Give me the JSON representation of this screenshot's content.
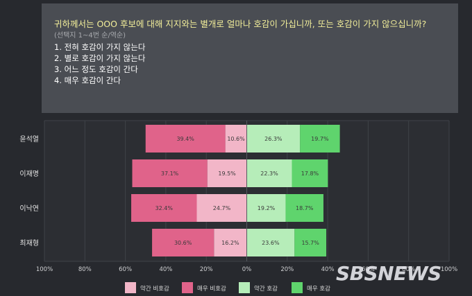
{
  "question": {
    "text": "귀하께서는 OOO 후보에 대해 지지와는 별개로 얼마나 호감이 가십니까, 또는 호감이 가지 않으십니까?",
    "note": "(선택지 1~4번 순/역순)",
    "options": [
      "1. 전혀 호감이 가지 않는다",
      "2. 별로 호감이 가지 않는다",
      "3. 어느 정도 호감이 간다",
      "4. 매우 호감이 간다"
    ]
  },
  "watermark": "SBSNEWS",
  "chart_data": {
    "type": "bar",
    "orientation": "horizontal-diverging",
    "categories": [
      "윤석열",
      "이재명",
      "이낙연",
      "최재형"
    ],
    "series": [
      {
        "name": "매우 비호감",
        "side": "negative",
        "color": "#e0638a",
        "values": [
          39.4,
          37.1,
          32.4,
          30.6
        ]
      },
      {
        "name": "약간 비호감",
        "side": "negative",
        "color": "#f2b6c8",
        "values": [
          10.6,
          19.5,
          24.7,
          16.2
        ]
      },
      {
        "name": "약간 호감",
        "side": "positive",
        "color": "#b6edb9",
        "values": [
          26.3,
          22.3,
          19.2,
          23.6
        ]
      },
      {
        "name": "매우 호감",
        "side": "positive",
        "color": "#5fd46d",
        "values": [
          19.7,
          17.8,
          18.7,
          15.7
        ]
      }
    ],
    "value_labels": [
      [
        "39.4%",
        "10.6%",
        "26.3%",
        "19.7%"
      ],
      [
        "37.1%",
        "19.5%",
        "22.3%",
        "17.8%"
      ],
      [
        "32.4%",
        "24.7%",
        "19.2%",
        "18.7%"
      ],
      [
        "30.6%",
        "16.2%",
        "23.6%",
        "15.7%"
      ]
    ],
    "xlim": [
      -100,
      100
    ],
    "x_ticks": [
      -100,
      -80,
      -60,
      -40,
      -20,
      0,
      20,
      40,
      60,
      80,
      100
    ],
    "x_tick_labels": [
      "100%",
      "80%",
      "60%",
      "40%",
      "20%",
      "0%",
      "20%",
      "40%",
      "60%",
      "80%",
      "100%"
    ],
    "legend": [
      "약간 비호감",
      "매우 비호감",
      "약간 호감",
      "매우 호감"
    ],
    "legend_position": "bottom",
    "grid": true
  }
}
